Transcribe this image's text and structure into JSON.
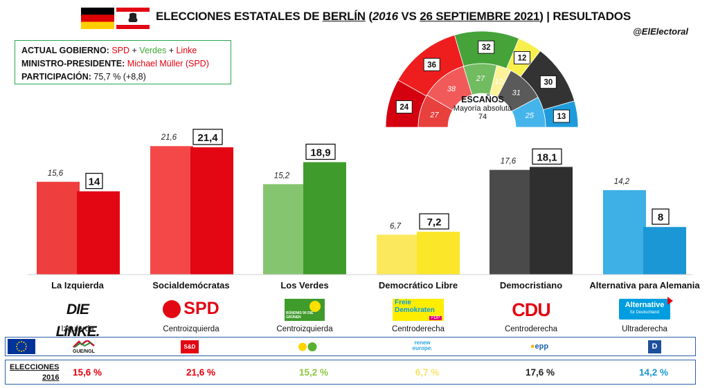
{
  "header": {
    "title_pre": "ELECCIONES ESTATALES DE ",
    "city": "BERLÍN",
    "title_open": " (",
    "year_prev": "2016",
    "vs": " VS ",
    "date": "26 SEPTIEMBRE 2021",
    "title_close": ") | RESULTADOS",
    "handle": "@ElElectoral"
  },
  "info": {
    "gov_label": "ACTUAL GOBIERNO:",
    "gov_p1": "SPD",
    "plus": " + ",
    "gov_p2": "Verdes",
    "gov_p3": "Linke",
    "mp_label": "MINISTRO-PRESIDENTE:",
    "mp_value": "Michael Müller (SPD)",
    "part_label": "PARTICIPACIÓN:",
    "part_value": "75,7 % (+8,8)"
  },
  "chart_data": [
    {
      "type": "bar",
      "categories": [
        "La Izquierda",
        "Socialdemócratas",
        "Los Verdes",
        "Democrático Libre",
        "Democristiano",
        "Alternativa para Alemania"
      ],
      "series": [
        {
          "name": "2016",
          "values": [
            15.6,
            21.6,
            15.2,
            6.7,
            17.6,
            14.2
          ],
          "labels": [
            "15,6",
            "21,6",
            "15,2",
            "6,7",
            "17,6",
            "14,2"
          ]
        },
        {
          "name": "2021",
          "values": [
            14,
            21.4,
            18.9,
            7.2,
            18.1,
            8
          ],
          "labels": [
            "14",
            "21,4",
            "18,9",
            "7,2",
            "18,1",
            "8"
          ]
        }
      ],
      "colors_2016": [
        "#ef3e3e",
        "#f44848",
        "#86c570",
        "#fbe85c",
        "#4a4a4a",
        "#3eb0e6"
      ],
      "colors_2021": [
        "#e30613",
        "#e30613",
        "#3f9b2c",
        "#fbe62a",
        "#2f2f2f",
        "#1b97d6"
      ],
      "ylim": [
        0,
        25
      ]
    },
    {
      "type": "pie",
      "title": "ESCAÑOS",
      "subtitle": "Mayoría absoluta",
      "majority": "74",
      "order": [
        "LINKE",
        "SPD",
        "GRÜNE",
        "FDP",
        "CDU",
        "AfD"
      ],
      "outer_2021": [
        24,
        36,
        32,
        12,
        30,
        13
      ],
      "inner_2016": [
        27,
        38,
        27,
        12,
        31,
        25
      ],
      "outer_colors": [
        "#d5000f",
        "#ee1e1e",
        "#45a33a",
        "#f7ef4d",
        "#333333",
        "#1e9bdb"
      ],
      "inner_colors": [
        "#e8403d",
        "#f25a5a",
        "#71bb61",
        "#fcf29a",
        "#5a5a5a",
        "#45b4eb"
      ]
    }
  ],
  "parties": [
    {
      "name": "La Izquierda",
      "ideology": "Izquierda",
      "logo": "DIE LiNKE.",
      "eu": "GUE/NGL",
      "v2016": "15,6 %",
      "color": "#e3000f"
    },
    {
      "name": "Socialdemócratas",
      "ideology": "Centroizquierda",
      "logo": "SPD",
      "eu": "S&D",
      "v2016": "21,6 %",
      "color": "#e3000f"
    },
    {
      "name": "Los Verdes",
      "ideology": "Centroizquierda",
      "logo": "BÜNDNIS 90 DIE GRÜNEN",
      "eu": "",
      "v2016": "15,2 %",
      "color": "#8cc63f"
    },
    {
      "name": "Democrático Libre",
      "ideology": "Centroderecha",
      "logo_l1": "Freie",
      "logo_l2": "Demokraten",
      "logo_l3": "FDP",
      "eu": "renew europe.",
      "v2016": "6,7 %",
      "color": "#f5e36a"
    },
    {
      "name": "Democristiano",
      "ideology": "Centroderecha",
      "logo": "CDU",
      "eu": "epp",
      "v2016": "17,6 %",
      "color": "#222222"
    },
    {
      "name": "Alternativa para Alemania",
      "ideology": "Ultraderecha",
      "logo_l1": "Alternative",
      "logo_l2": "für Deutschland",
      "eu": "",
      "v2016": "14,2 %",
      "color": "#1b97d6"
    }
  ],
  "row2016": {
    "label_l1": "ELECCIONES",
    "label_l2": "2016"
  }
}
